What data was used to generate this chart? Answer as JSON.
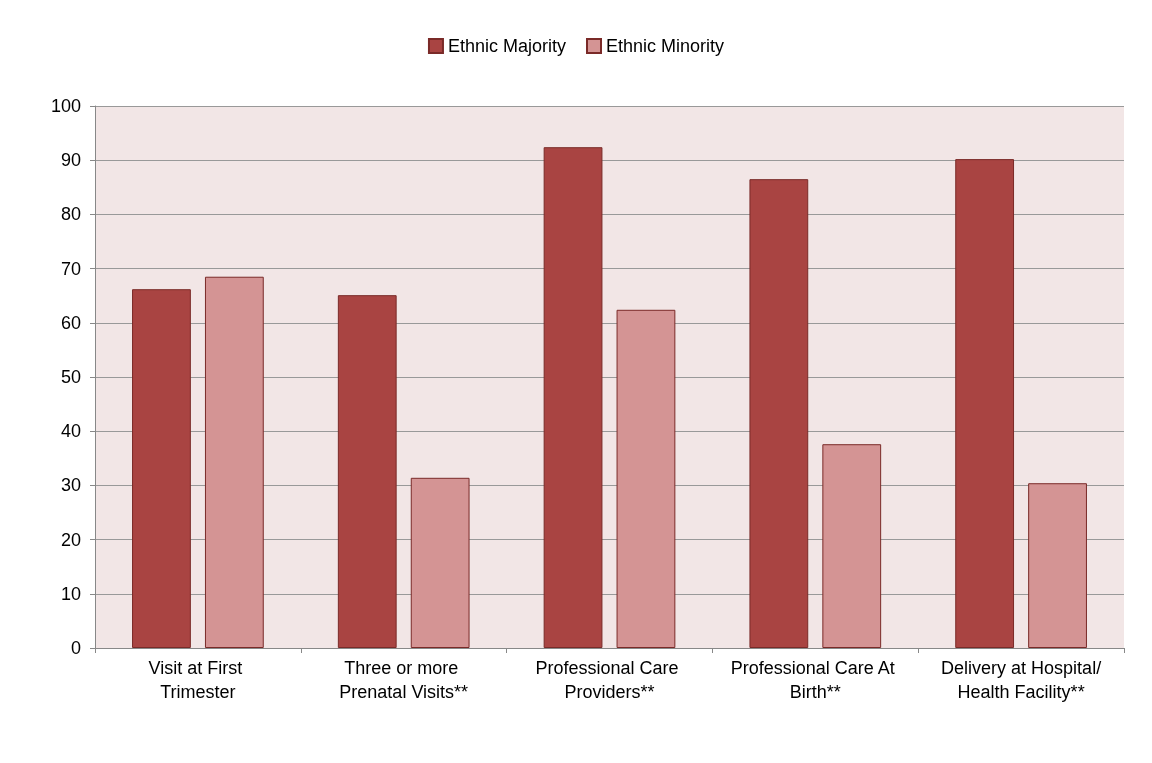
{
  "chart_data": {
    "type": "bar",
    "categories": [
      "Visit at First Trimester",
      "Three or more Prenatal Visits**",
      "Professional Care Providers**",
      "Professional Care At Birth**",
      "Delivery at Hospital/Health Facility**"
    ],
    "series": [
      {
        "name": "Ethnic Majority",
        "color": "#a94442",
        "values": [
          66.2,
          65.1,
          92.4,
          86.5,
          90.2
        ]
      },
      {
        "name": "Ethnic Minority",
        "color": "#d49494",
        "values": [
          68.5,
          31.4,
          62.4,
          37.6,
          30.4
        ]
      }
    ],
    "ylim": [
      0,
      100
    ],
    "yticks": [
      0,
      10,
      20,
      30,
      40,
      50,
      60,
      70,
      80,
      90,
      100
    ],
    "grid": "y",
    "legend": "top"
  }
}
